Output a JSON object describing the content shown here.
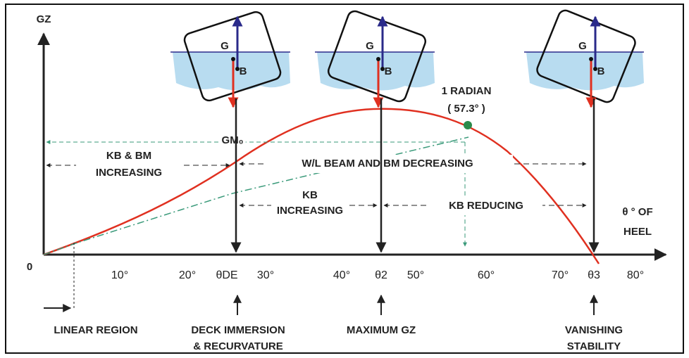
{
  "axes": {
    "y_label": "GZ",
    "origin": "0",
    "x_label_line1": "θ ° OF",
    "x_label_line2": "HEEL",
    "ticks": [
      "10°",
      "20°",
      "θDE",
      "30°",
      "40°",
      "θ2",
      "50°",
      "60°",
      "70°",
      "θ3",
      "80°"
    ]
  },
  "annotations": {
    "radian_line1": "1 RADIAN",
    "radian_line2": "( 57.3° )",
    "gm": "GM₀",
    "kb_bm_line1": "KB & BM",
    "kb_bm_line2": "INCREASING",
    "wl_beam": "W/L BEAM AND BM DECREASING",
    "kb_inc_line1": "KB",
    "kb_inc_line2": "INCREASING",
    "kb_reducing": "KB REDUCING"
  },
  "bottom_labels": {
    "linear": "LINEAR REGION",
    "deck_line1": "DECK IMMERSION",
    "deck_line2": "& RECURVATURE",
    "max_gz": "MAXIMUM GZ",
    "vanishing_line1": "VANISHING",
    "vanishing_line2": "STABILITY"
  },
  "ships": [
    {
      "g": "G",
      "b": "B"
    },
    {
      "g": "G",
      "b": "B"
    },
    {
      "g": "G",
      "b": "B"
    }
  ]
}
